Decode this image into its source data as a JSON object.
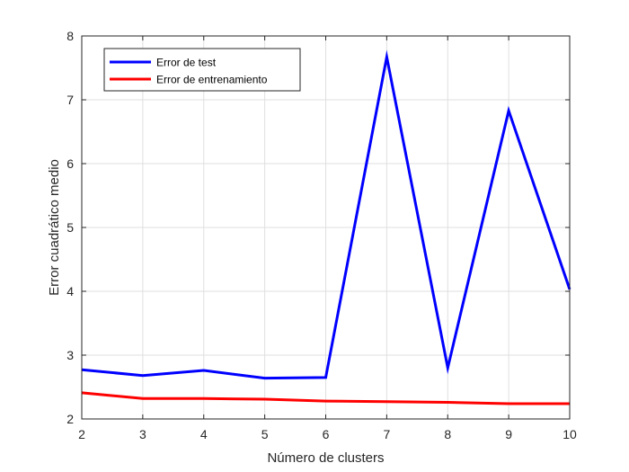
{
  "chart_data": {
    "type": "line",
    "title": "",
    "xlabel": "Número de clusters",
    "ylabel": "Error cuadrático medio",
    "xlim": [
      2,
      10
    ],
    "ylim": [
      2,
      8
    ],
    "x_ticks": [
      2,
      3,
      4,
      5,
      6,
      7,
      8,
      9,
      10
    ],
    "y_ticks": [
      2,
      3,
      4,
      5,
      6,
      7,
      8
    ],
    "grid": true,
    "legend_position": "top-left",
    "x": [
      2,
      3,
      4,
      5,
      6,
      7,
      8,
      9,
      10
    ],
    "series": [
      {
        "name": "Error de test",
        "color": "#0000ff",
        "values": [
          2.77,
          2.68,
          2.76,
          2.64,
          2.65,
          7.67,
          2.8,
          6.83,
          4.03
        ]
      },
      {
        "name": "Error de entrenamiento",
        "color": "#ff0000",
        "values": [
          2.41,
          2.32,
          2.32,
          2.31,
          2.28,
          2.27,
          2.26,
          2.24,
          2.24
        ]
      }
    ]
  }
}
